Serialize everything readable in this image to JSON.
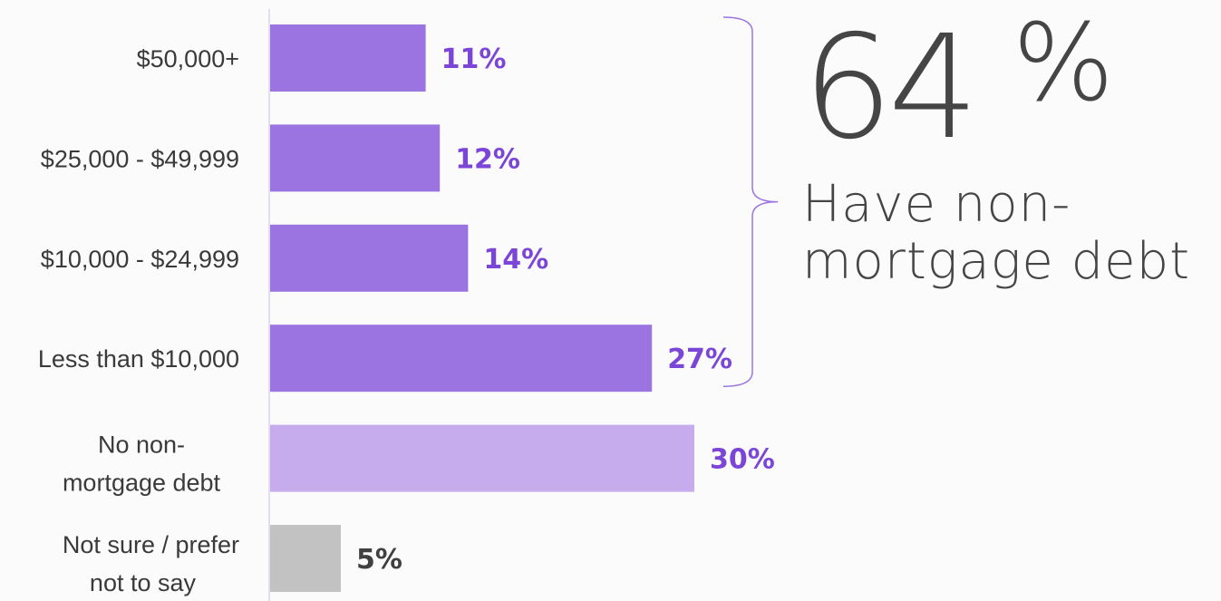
{
  "chart_data": {
    "type": "bar",
    "orientation": "horizontal",
    "categories": [
      [
        "$50,000+"
      ],
      [
        "$25,000 - $49,999"
      ],
      [
        "$10,000 - $24,999"
      ],
      [
        "Less than $10,000"
      ],
      [
        "No non-",
        "mortgage debt"
      ],
      [
        "Not sure / prefer",
        "not to say"
      ]
    ],
    "values": [
      11,
      12,
      14,
      27,
      30,
      5
    ],
    "value_labels": [
      "11%",
      "12%",
      "14%",
      "27%",
      "30%",
      "5%"
    ],
    "bar_colors": [
      "#9b74e1",
      "#9b74e1",
      "#9b74e1",
      "#9b74e1",
      "#c6aced",
      "#c2c2c2"
    ],
    "label_colors": [
      "#7b45d8",
      "#7b45d8",
      "#7b45d8",
      "#7b45d8",
      "#7b45d8",
      "#404040"
    ],
    "bracket_covers": [
      0,
      3
    ],
    "xlim": [
      0,
      30
    ]
  },
  "callout": {
    "value": "64",
    "unit": "%",
    "text": "Have non-mortgage debt"
  },
  "colors": {
    "axis": "#e4dcf3",
    "bracket": "#9b74e1",
    "callout_text": "#454545"
  }
}
